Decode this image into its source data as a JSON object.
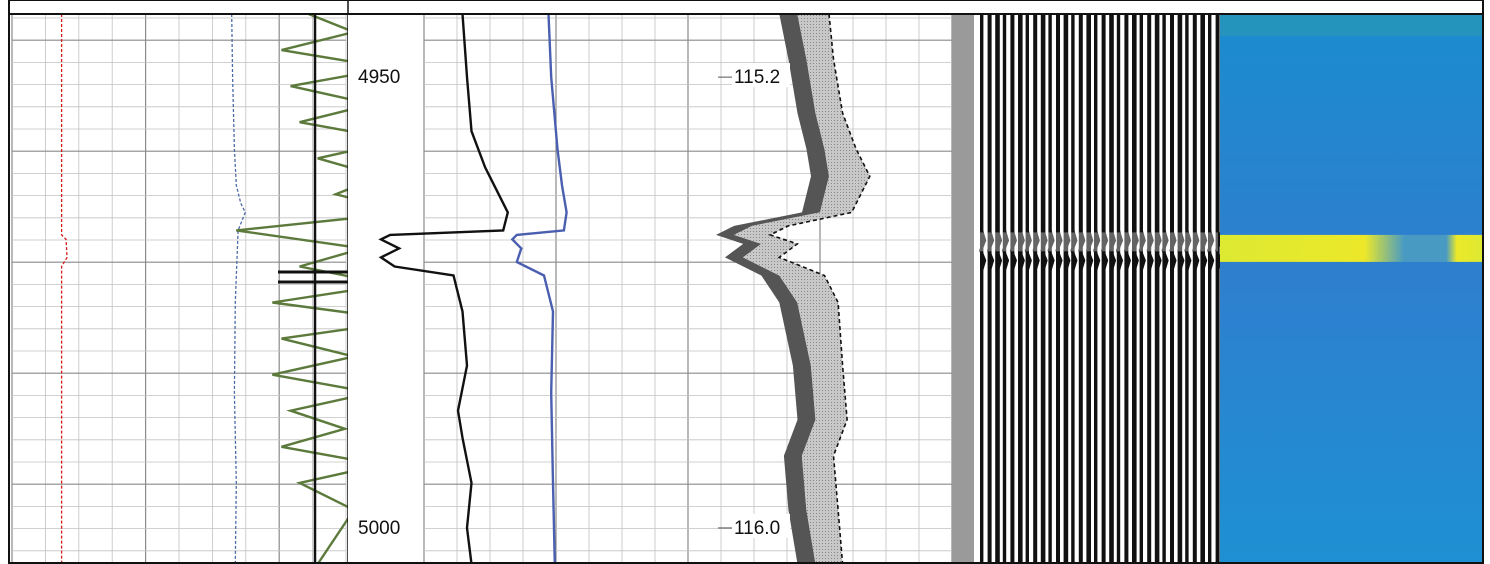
{
  "chart_data": {
    "type": "line",
    "title": "",
    "depth_axis": {
      "range": [
        4943,
        5004
      ],
      "labels": [
        4950,
        5000
      ]
    },
    "tracks": [
      {
        "name": "",
        "curves": [
          {
            "name": "",
            "color": "#d91a1a",
            "style": "dashed",
            "x": [
              0.57,
              0.57,
              0.57,
              0.57,
              0.62,
              0.63,
              0.57,
              0.57,
              0.57,
              0.57
            ],
            "y": [
              4943,
              4960,
              4966,
              4967.5,
              4968,
              4970,
              4971,
              4980,
              4995,
              5004
            ]
          },
          {
            "name": "",
            "color": "#4a6aa8",
            "style": "dashed",
            "x": [
              2.45,
              2.46,
              2.48,
              2.5,
              2.55,
              2.6,
              2.52,
              2.49,
              2.48,
              2.5,
              2.49
            ],
            "y": [
              4943,
              4950,
              4958,
              4962,
              4964,
              4965,
              4967,
              4975,
              4985,
              4995,
              5004
            ]
          },
          {
            "name": "",
            "color": "#5c7a3c",
            "style": "solid",
            "x": [
              3.3,
              3.8,
              3.0,
              4.2,
              3.1,
              4.0,
              3.2,
              4.3,
              3.4,
              4.1,
              3.6,
              4.4,
              2.5,
              3.9,
              3.2,
              4.2,
              2.9,
              4.4,
              3.0,
              3.8,
              2.9,
              4.0,
              3.1,
              3.7,
              3.0,
              4.1,
              3.2,
              3.8,
              3.4
            ],
            "y": [
              4943,
              4945,
              4947,
              4949,
              4951,
              4953,
              4955,
              4957,
              4959,
              4961,
              4963,
              4965,
              4967,
              4969,
              4971,
              4973,
              4975,
              4977,
              4979,
              4981,
              4983,
              4985,
              4987,
              4989,
              4991,
              4993,
              4995,
              4998,
              5004
            ]
          }
        ]
      },
      {
        "name": "",
        "curves": [
          {
            "name": "",
            "color": "#111111",
            "style": "solid",
            "x": [
              5.0,
              5.05,
              5.1,
              5.25,
              5.4,
              5.5,
              5.45,
              4.2,
              4.1,
              4.3,
              4.1,
              4.25,
              4.9,
              5.0,
              5.05,
              4.95,
              5.0,
              5.1,
              5.05,
              5.1
            ],
            "y": [
              4943,
              4950,
              4956,
              4960,
              4963,
              4965,
              4967,
              4967.5,
              4968,
              4969,
              4970,
              4971,
              4972,
              4976,
              4982,
              4987,
              4990,
              4995,
              5000,
              5004
            ]
          },
          {
            "name": "",
            "color": "#4a5fb0",
            "style": "solid",
            "x": [
              5.95,
              5.98,
              6.05,
              6.1,
              6.15,
              6.12,
              5.6,
              5.55,
              5.65,
              5.6,
              5.9,
              6.0,
              5.98,
              6.0,
              6.02
            ],
            "y": [
              4943,
              4950,
              4958,
              4962,
              4965,
              4967,
              4967.5,
              4968,
              4969,
              4970.5,
              4972,
              4976,
              4985,
              4995,
              5004
            ]
          }
        ]
      },
      {
        "name": "",
        "curves": [
          {
            "name": "",
            "color": "#555555",
            "style": "filled",
            "x": [
              8.7,
              8.8,
              8.9,
              9.0,
              9.05,
              8.95,
              8.2,
              8.0,
              8.3,
              8.1,
              8.5,
              8.7,
              8.85,
              8.9,
              8.75,
              8.8,
              8.9
            ],
            "y": [
              4943,
              4948,
              4954,
              4958,
              4961,
              4965,
              4966.5,
              4967.5,
              4968.5,
              4970,
              4972,
              4975,
              4982,
              4988,
              4992,
              4998,
              5004
            ]
          },
          {
            "name": "",
            "color": "#aaaaaa",
            "style": "filled",
            "x": [
              9.05,
              9.1,
              9.2,
              9.35,
              9.5,
              9.3,
              8.6,
              8.4,
              8.7,
              8.5,
              9.0,
              9.15,
              9.2,
              9.25,
              9.1,
              9.15,
              9.2
            ],
            "y": [
              4943,
              4948,
              4954,
              4958,
              4961,
              4965,
              4966.5,
              4967.5,
              4968.5,
              4970,
              4972,
              4975,
              4982,
              4988,
              4992,
              4998,
              5004
            ]
          }
        ]
      }
    ],
    "secondary_labels": [
      "115.2",
      "116.0"
    ],
    "waveform_track": {
      "dark_band_depth": [
        4967,
        4973
      ]
    },
    "image_track": {
      "colormap": [
        "#1d8fd0",
        "#3e7ccf",
        "#f6ee20"
      ],
      "bright_band_depth": [
        4967.5,
        4970.5
      ]
    }
  }
}
